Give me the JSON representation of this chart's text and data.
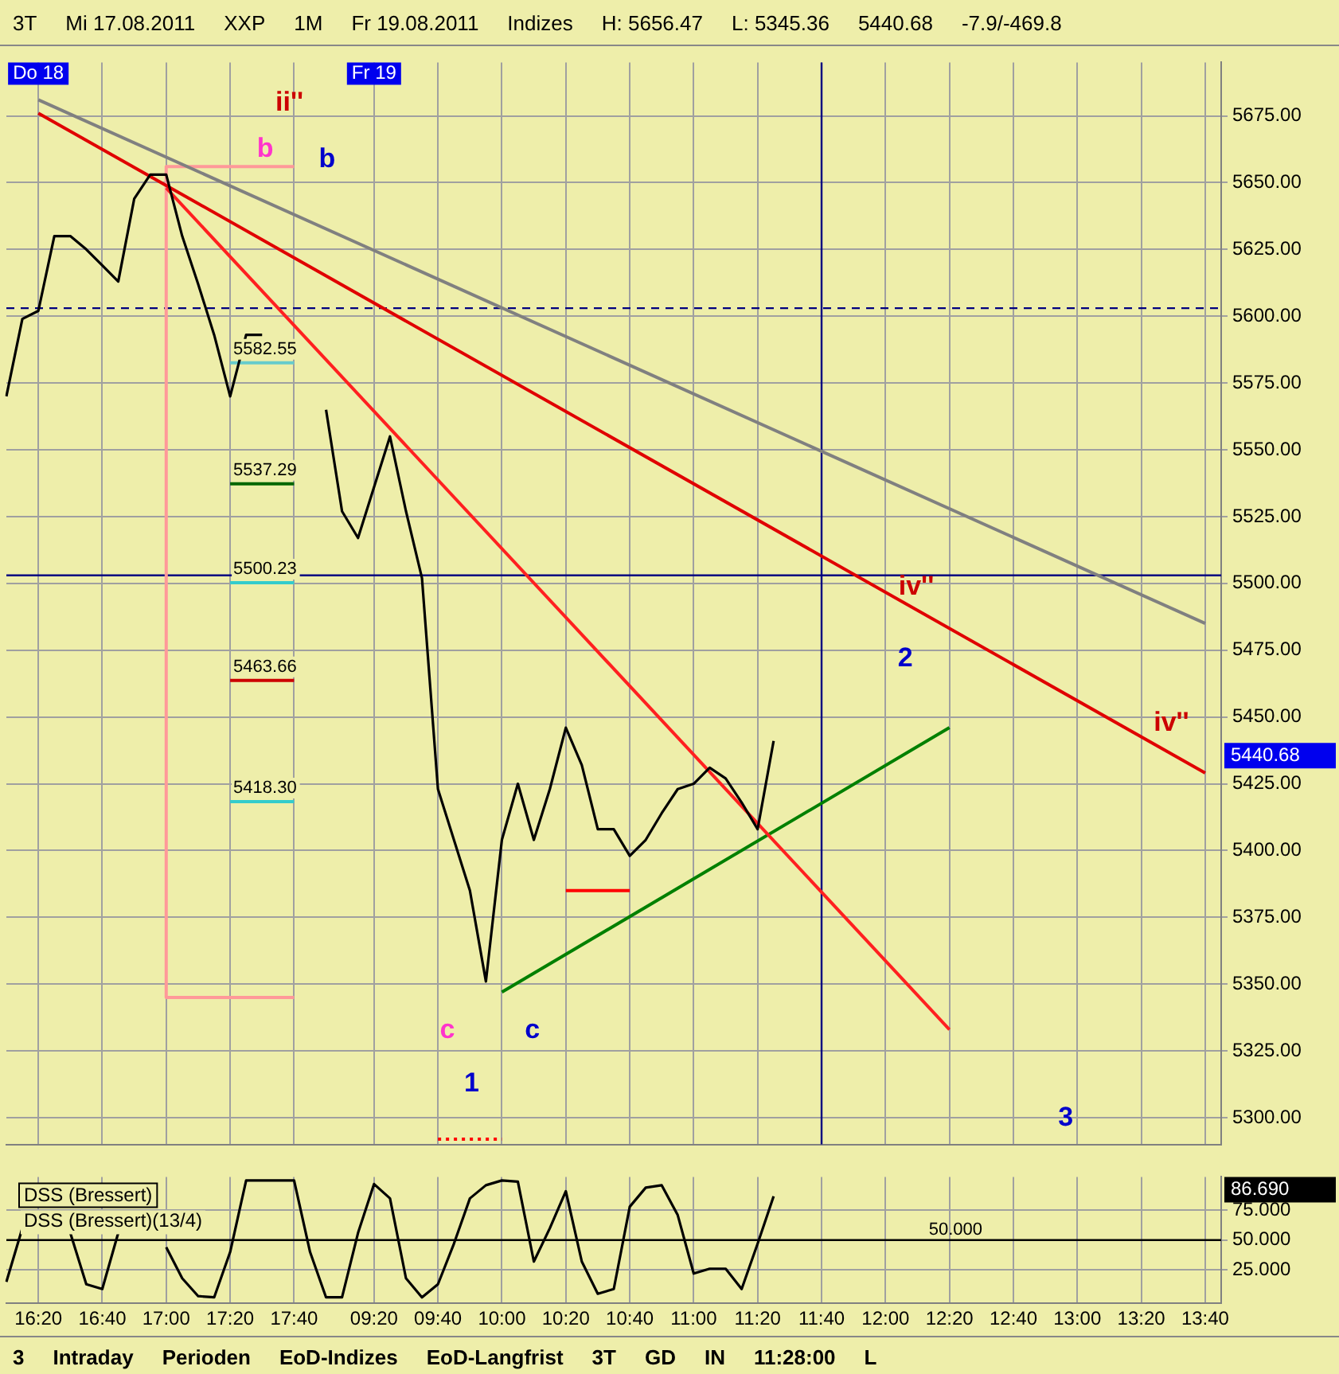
{
  "chart_data": [
    {
      "type": "line",
      "categories": [
        null,
        null,
        "16:20",
        null,
        null,
        null,
        "16:40",
        null,
        null,
        null,
        "17:00",
        null,
        null,
        null,
        "17:20",
        null,
        null,
        null,
        "17:40",
        null,
        null,
        null,
        null,
        "09:20",
        null,
        null,
        null,
        "09:40",
        null,
        null,
        null,
        "10:00",
        null,
        null,
        null,
        "10:20",
        null,
        null,
        null,
        "10:40",
        null,
        null,
        null,
        "11:00",
        null,
        null,
        null,
        "11:20",
        null,
        null,
        null,
        "11:40",
        null,
        null,
        null,
        "12:00",
        null,
        null,
        null,
        "12:20",
        null,
        null,
        null,
        "12:40",
        null,
        null,
        null,
        "13:00",
        null,
        null,
        null,
        "13:20",
        null,
        null,
        null,
        "13:40",
        null
      ],
      "series": [
        {
          "color": "#000000",
          "values": [
            5570,
            5599,
            5602,
            5630,
            5630,
            5625,
            5619,
            5613,
            5644,
            5653,
            5653,
            5630,
            5612,
            5593,
            5570,
            5593,
            5593,
            null,
            null,
            null,
            5565,
            5527,
            5517,
            5536,
            5555,
            5527,
            5502,
            5423,
            5404,
            5385,
            5351,
            5404,
            5425,
            5404,
            5423,
            5446,
            5432,
            5408,
            5408,
            5398,
            5404,
            5414,
            5423,
            5425,
            5431,
            5427,
            5418,
            5408,
            5441,
            null,
            null,
            null,
            null,
            null,
            null,
            null,
            null,
            null,
            null,
            null,
            null,
            null,
            null,
            null,
            null,
            null,
            null,
            null,
            null,
            null,
            null,
            null,
            null,
            null,
            null,
            null,
            null
          ]
        },
        {
          "color": "#808080",
          "x": [
            "16:20",
            "13:40"
          ],
          "values": [
            5681,
            5485
          ]
        },
        {
          "color": "#e00000",
          "x": [
            "16:20",
            "13:40"
          ],
          "values": [
            5676,
            5429
          ]
        },
        {
          "color": "#ff2020",
          "x": [
            "17:00",
            "12:20"
          ],
          "values": [
            5648,
            5333
          ]
        },
        {
          "color": "#008000",
          "x": [
            "10:00",
            "12:20"
          ],
          "values": [
            5347,
            5446
          ]
        },
        {
          "color": "#ff9999",
          "x": [
            "17:40",
            "17:00",
            "17:00",
            "17:40"
          ],
          "values": [
            5656,
            5656,
            5345,
            5345
          ]
        },
        {
          "color": "#66cccc",
          "x": [
            "17:20",
            "17:40"
          ],
          "values": [
            5582.55,
            5582.55
          ]
        },
        {
          "color": "#006600",
          "x": [
            "17:20",
            "17:40"
          ],
          "values": [
            5537.29,
            5537.29
          ]
        },
        {
          "color": "#33cccc",
          "x": [
            "17:20",
            "17:40"
          ],
          "values": [
            5500.23,
            5500.23
          ]
        },
        {
          "color": "#cc0000",
          "x": [
            "17:20",
            "17:40"
          ],
          "values": [
            5463.66,
            5463.66
          ]
        },
        {
          "color": "#33cccc",
          "x": [
            "17:20",
            "17:40"
          ],
          "values": [
            5418.3,
            5418.3
          ]
        },
        {
          "color": "#ff0000",
          "x": [
            "10:20",
            "10:40"
          ],
          "values": [
            5385,
            5385
          ]
        },
        {
          "color": "#ff0000",
          "x": [
            "09:40",
            "10:00"
          ],
          "values": [
            5292,
            5292
          ],
          "line_style": "dotted"
        }
      ],
      "ylim": [
        5290,
        5695
      ],
      "yticks": [
        {
          "value": 5300,
          "label": "5300.00"
        },
        {
          "value": 5325,
          "label": "5325.00"
        },
        {
          "value": 5350,
          "label": "5350.00"
        },
        {
          "value": 5375,
          "label": "5375.00"
        },
        {
          "value": 5400,
          "label": "5400.00"
        },
        {
          "value": 5425,
          "label": "5425.00"
        },
        {
          "value": 5450,
          "label": "5450.00"
        },
        {
          "value": 5475,
          "label": "5475.00"
        },
        {
          "value": 5500,
          "label": "5500.00"
        },
        {
          "value": 5525,
          "label": "5525.00"
        },
        {
          "value": 5550,
          "label": "5550.00"
        },
        {
          "value": 5575,
          "label": "5575.00"
        },
        {
          "value": 5600,
          "label": "5600.00"
        },
        {
          "value": 5625,
          "label": "5625.00"
        },
        {
          "value": 5650,
          "label": "5650.00"
        },
        {
          "value": 5675,
          "label": "5675.00"
        }
      ],
      "ref_lines": [
        {
          "axis": "y",
          "value": 5503,
          "color": "#000080"
        },
        {
          "axis": "y",
          "value": 5603,
          "color": "#000080",
          "line_style": "dashed"
        },
        {
          "axis": "x",
          "value": "11:40",
          "color": "#000080"
        }
      ],
      "grid": true,
      "tick_labels": "y",
      "annotations": [
        "3T",
        "Mi 17.08.2011",
        "XXP",
        "1M",
        "Fr 19.08.2011",
        "Indizes",
        "H: 5656.47",
        "L: 5345.36",
        "5440.68",
        "-7.9/-469.8",
        {
          "text": "Do 18",
          "x": "16:20"
        },
        {
          "text": "Fr 19",
          "x": "09:20"
        },
        "5440.68",
        "ii''",
        "b",
        "b",
        "c",
        "c",
        "1",
        "2",
        "3",
        "iv''",
        "iv''",
        {
          "text": "5582.55",
          "x": "17:20",
          "y": 5582.55
        },
        {
          "text": "5537.29",
          "x": "17:20",
          "y": 5537.29
        },
        {
          "text": "5500.23",
          "x": "17:20",
          "y": 5500.23
        },
        {
          "text": "5463.66",
          "x": "17:20",
          "y": 5463.66
        },
        {
          "text": "5418.30",
          "x": "17:20",
          "y": 5418.3
        }
      ]
    },
    {
      "type": "line",
      "title": "DSS (Bressert)",
      "subtitle": "DSS (Bressert)(13/4)",
      "categories": [
        null,
        null,
        "16:20",
        null,
        null,
        null,
        "16:40",
        null,
        null,
        null,
        "17:00",
        null,
        null,
        null,
        "17:20",
        null,
        null,
        null,
        "17:40",
        null,
        null,
        null,
        null,
        "09:20",
        null,
        null,
        null,
        "09:40",
        null,
        null,
        null,
        "10:00",
        null,
        null,
        null,
        "10:20",
        null,
        null,
        null,
        "10:40",
        null,
        null,
        null,
        "11:00",
        null,
        null,
        null,
        "11:20",
        null,
        null,
        null,
        "11:40",
        null,
        null,
        null,
        "12:00",
        null,
        null,
        null,
        "12:20",
        null,
        null,
        null,
        "12:40",
        null,
        null,
        null,
        "13:00",
        null,
        null,
        null,
        "13:20",
        null,
        null,
        null,
        "13:40",
        null
      ],
      "series": [
        {
          "color": "#000000",
          "values": [
            15,
            60,
            null,
            null,
            56,
            13,
            9,
            56,
            null,
            null,
            44,
            18,
            3,
            2,
            40,
            100,
            100,
            100,
            100,
            40,
            2,
            2,
            56,
            97,
            85,
            18,
            2,
            13,
            47,
            85,
            96,
            100,
            99,
            32,
            60,
            91,
            32,
            5,
            9,
            78,
            94,
            96,
            71,
            22,
            26,
            26,
            9,
            47,
            86.69,
            null,
            null,
            null,
            null,
            null,
            null,
            null,
            null,
            null,
            null,
            null,
            null,
            null,
            null,
            null,
            null,
            null,
            null,
            null,
            null,
            null,
            null,
            null,
            null,
            null,
            null,
            null,
            null
          ]
        }
      ],
      "ylim": [
        -3,
        103
      ],
      "yticks": [
        {
          "value": 25,
          "label": "25.000"
        },
        {
          "value": 50,
          "label": "50.000"
        },
        {
          "value": 75,
          "label": "75.000"
        }
      ],
      "ref_lines": [
        {
          "axis": "y",
          "value": 50,
          "label": "50.000",
          "color": "#000000"
        }
      ],
      "grid": true,
      "annotations": [
        "3",
        "Intraday",
        "Perioden",
        "EoD-Indizes",
        "EoD-Langfrist",
        "3T",
        "GD",
        "IN",
        "11:28:00",
        "L",
        "86.690"
      ]
    }
  ]
}
